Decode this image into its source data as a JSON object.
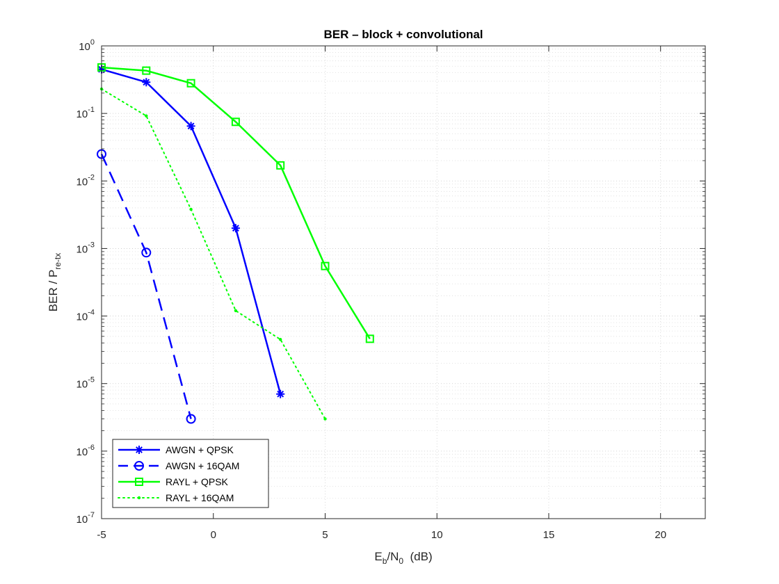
{
  "chart_data": {
    "type": "line",
    "title": "BER – block + convolutional",
    "xlabel": {
      "main": "E",
      "sub1": "b",
      "mid": "/N",
      "sub2": "0",
      "tail": "  (dB)"
    },
    "ylabel": {
      "main": "BER / P",
      "sub": "re-tx"
    },
    "xlim": [
      -5,
      22
    ],
    "ylim_exponent": [
      -7,
      0
    ],
    "yscale": "log",
    "grid": true,
    "minor_grid": true,
    "legend_position": "bottom-left",
    "xticks": [
      "-5",
      "0",
      "5",
      "10",
      "15",
      "20"
    ],
    "xtick_values": [
      -5,
      0,
      5,
      10,
      15,
      20
    ],
    "yticks": [
      {
        "base": "10",
        "exp": "0",
        "value": 0
      },
      {
        "base": "10",
        "exp": "-1",
        "value": -1
      },
      {
        "base": "10",
        "exp": "-2",
        "value": -2
      },
      {
        "base": "10",
        "exp": "-3",
        "value": -3
      },
      {
        "base": "10",
        "exp": "-4",
        "value": -4
      },
      {
        "base": "10",
        "exp": "-5",
        "value": -5
      },
      {
        "base": "10",
        "exp": "-6",
        "value": -6
      },
      {
        "base": "10",
        "exp": "-7",
        "value": -7
      }
    ],
    "series": [
      {
        "name": "AWGN  +  QPSK",
        "color": "#0000ff",
        "style": "solid",
        "marker": "asterisk",
        "x": [
          -5,
          -3,
          -1,
          1,
          3
        ],
        "y": [
          0.45,
          0.29,
          0.065,
          0.002,
          7e-06
        ]
      },
      {
        "name": "AWGN  + 16QAM",
        "color": "#0000ff",
        "style": "dashed",
        "marker": "circle",
        "x": [
          -5,
          -3,
          -1
        ],
        "y": [
          0.025,
          0.00087,
          3e-06
        ]
      },
      {
        "name": "RAYL  +  QPSK",
        "color": "#00ff00",
        "style": "solid",
        "marker": "square",
        "x": [
          -5,
          -3,
          -1,
          1,
          3,
          5,
          7
        ],
        "y": [
          0.48,
          0.43,
          0.28,
          0.075,
          0.017,
          0.00055,
          4.6e-05
        ]
      },
      {
        "name": "RAYL  + 16QAM",
        "color": "#00ff00",
        "style": "dotted",
        "marker": "dot",
        "x": [
          -5,
          -3,
          -1,
          1,
          3,
          5
        ],
        "y": [
          0.23,
          0.092,
          0.0038,
          0.00012,
          4.5e-05,
          3e-06
        ]
      }
    ]
  }
}
